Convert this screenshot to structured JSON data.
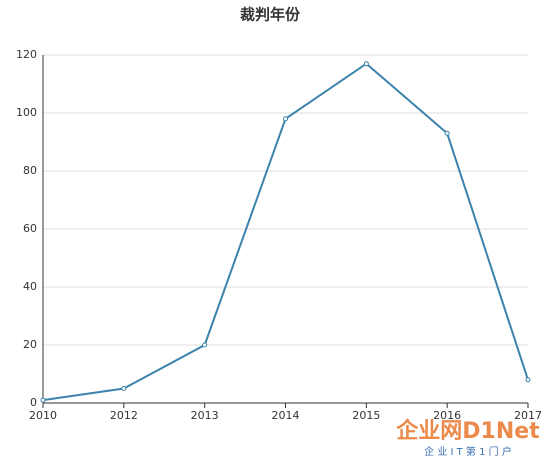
{
  "chart_data": {
    "type": "line",
    "title": "裁判年份",
    "categories": [
      "2010",
      "2012",
      "2013",
      "2014",
      "2015",
      "2016",
      "2017"
    ],
    "series": [
      {
        "name": "裁判年份",
        "color": "#3c83ac",
        "values": [
          1,
          5,
          20,
          98,
          117,
          93,
          8
        ]
      }
    ],
    "ylim": [
      0,
      120
    ],
    "yticks": [
      0,
      20,
      40,
      60,
      80,
      100,
      120
    ],
    "grid": true
  },
  "watermark": {
    "logo": "企业网D1Net",
    "tagline": "企 业 I T 第 1 门 户"
  }
}
